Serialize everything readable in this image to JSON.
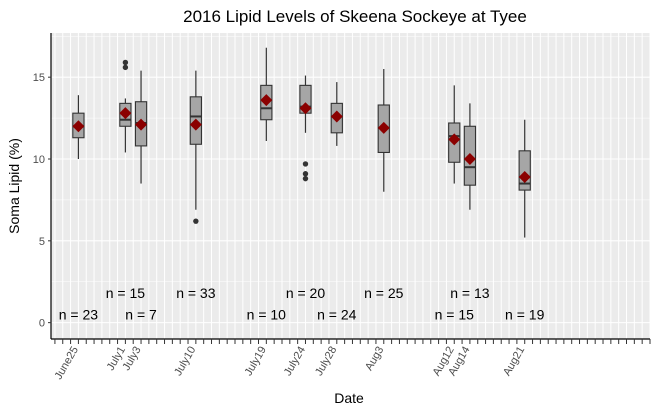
{
  "chart_data": {
    "type": "boxplot",
    "title": "2016 Lipid Levels of Skeena Sockeye at Tyee",
    "xlabel": "Date",
    "ylabel": "Soma Lipid (%)",
    "ylim": [
      -1.0,
      17.7
    ],
    "yticks": [
      0,
      5,
      10,
      15
    ],
    "x_day_range": [
      -3.5,
      73
    ],
    "grid": true,
    "background": "#ebebeb",
    "colors": {
      "box_fill": "#a6a6a6",
      "box_stroke": "#333333",
      "mean_marker": "#8b0000",
      "outlier": "#333333"
    },
    "x_ticks": [
      {
        "label": "June25",
        "day": 0
      },
      {
        "label": "July1",
        "day": 6
      },
      {
        "label": "July3",
        "day": 8
      },
      {
        "label": "July10",
        "day": 15
      },
      {
        "label": "July19",
        "day": 24
      },
      {
        "label": "July24",
        "day": 29
      },
      {
        "label": "July28",
        "day": 33
      },
      {
        "label": "Aug3",
        "day": 39
      },
      {
        "label": "Aug12",
        "day": 48
      },
      {
        "label": "Aug14",
        "day": 50
      },
      {
        "label": "Aug21",
        "day": 57
      }
    ],
    "boxes": [
      {
        "date": "June25",
        "day": 0,
        "whisker_low": 10.0,
        "q1": 11.3,
        "median": 12.0,
        "q3": 12.8,
        "whisker_high": 13.9,
        "mean": 12.0,
        "outliers": [],
        "n_label": "n = 23",
        "n_y": 0.5
      },
      {
        "date": "July1",
        "day": 6,
        "whisker_low": 10.4,
        "q1": 12.0,
        "median": 12.4,
        "q3": 13.4,
        "whisker_high": 13.7,
        "mean": 12.8,
        "outliers": [
          15.6,
          15.9
        ],
        "n_label": "n = 15",
        "n_y": 1.8
      },
      {
        "date": "July3",
        "day": 8,
        "whisker_low": 8.5,
        "q1": 10.8,
        "median": 12.2,
        "q3": 13.5,
        "whisker_high": 15.4,
        "mean": 12.1,
        "outliers": [],
        "n_label": "n = 7",
        "n_y": 0.5
      },
      {
        "date": "July10",
        "day": 15,
        "whisker_low": 6.9,
        "q1": 10.9,
        "median": 12.6,
        "q3": 13.8,
        "whisker_high": 15.4,
        "mean": 12.1,
        "outliers": [
          6.2
        ],
        "n_label": "n = 33",
        "n_y": 1.8
      },
      {
        "date": "July19",
        "day": 24,
        "whisker_low": 11.1,
        "q1": 12.4,
        "median": 13.1,
        "q3": 14.5,
        "whisker_high": 16.8,
        "mean": 13.6,
        "outliers": [],
        "n_label": "n = 10",
        "n_y": 0.5
      },
      {
        "date": "July24",
        "day": 29,
        "whisker_low": 11.6,
        "q1": 12.8,
        "median": 13.2,
        "q3": 14.5,
        "whisker_high": 15.1,
        "mean": 13.1,
        "outliers": [
          9.7,
          9.1,
          8.8
        ],
        "n_label": "n = 20",
        "n_y": 1.8
      },
      {
        "date": "July28",
        "day": 33,
        "whisker_low": 10.8,
        "q1": 11.6,
        "median": 12.6,
        "q3": 13.4,
        "whisker_high": 14.7,
        "mean": 12.6,
        "outliers": [],
        "n_label": "n = 24",
        "n_y": 0.5
      },
      {
        "date": "Aug3",
        "day": 39,
        "whisker_low": 8.0,
        "q1": 10.4,
        "median": 11.9,
        "q3": 13.3,
        "whisker_high": 15.5,
        "mean": 11.9,
        "outliers": [],
        "n_label": "n = 25",
        "n_y": 1.8
      },
      {
        "date": "Aug12",
        "day": 48,
        "whisker_low": 8.5,
        "q1": 9.8,
        "median": 11.4,
        "q3": 12.2,
        "whisker_high": 14.5,
        "mean": 11.2,
        "outliers": [],
        "n_label": "n = 15",
        "n_y": 0.5
      },
      {
        "date": "Aug14",
        "day": 50,
        "whisker_low": 6.9,
        "q1": 8.4,
        "median": 9.5,
        "q3": 12.0,
        "whisker_high": 13.4,
        "mean": 10.0,
        "outliers": [],
        "n_label": "n = 13",
        "n_y": 1.8
      },
      {
        "date": "Aug21",
        "day": 57,
        "whisker_low": 5.2,
        "q1": 8.1,
        "median": 8.5,
        "q3": 10.5,
        "whisker_high": 12.4,
        "mean": 8.9,
        "outliers": [],
        "n_label": "n = 19",
        "n_y": 0.5
      }
    ]
  }
}
